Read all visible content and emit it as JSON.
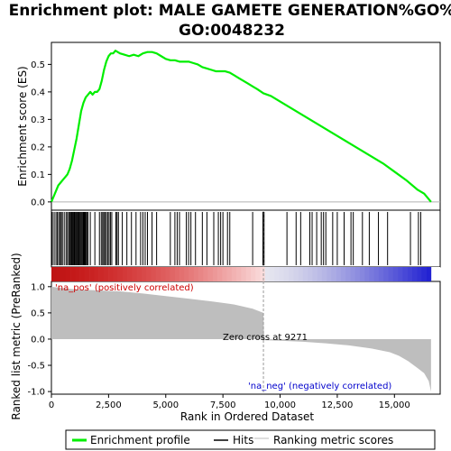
{
  "chart_data": {
    "type": "line",
    "title_line1": "Enrichment plot: MALE GAMETE GENERATION%GO%",
    "title_line2": "GO:0048232",
    "xlabel": "Rank in Ordered Dataset",
    "ylabel_top": "Enrichment score (ES)",
    "ylabel_bottom": "Ranked list metric (PreRanked)",
    "xlim": [
      0,
      17000
    ],
    "x_ticks": [
      0,
      2500,
      5000,
      7500,
      10000,
      12500,
      15000
    ],
    "x_tick_labels": [
      "0",
      "2,500",
      "5,000",
      "7,500",
      "10,000",
      "12,500",
      "15,000"
    ],
    "es_ylim": [
      -0.03,
      0.58
    ],
    "es_ticks": [
      0.0,
      0.1,
      0.2,
      0.3,
      0.4,
      0.5
    ],
    "es_tick_labels": [
      "0.0",
      "0.1",
      "0.2",
      "0.3",
      "0.4",
      "0.5"
    ],
    "metric_ylim": [
      -1.05,
      1.1
    ],
    "metric_ticks": [
      1.0,
      0.5,
      0.0,
      -0.5,
      -1.0
    ],
    "metric_tick_labels": [
      "1.0",
      "0.5",
      "0.0",
      "-0.5",
      "-1.0"
    ],
    "n_genes": 16600,
    "zero_cross": 9271,
    "annotations": {
      "pos": "'na_pos' (positively correlated)",
      "neg": "'na_neg' (negatively correlated)",
      "zero": "Zero cross at 9271"
    },
    "series": [
      {
        "name": "Enrichment profile",
        "color": "#00ee00",
        "x": [
          0,
          100,
          200,
          300,
          400,
          500,
          600,
          700,
          800,
          900,
          1000,
          1100,
          1200,
          1300,
          1400,
          1500,
          1600,
          1700,
          1800,
          1900,
          2000,
          2100,
          2200,
          2300,
          2400,
          2500,
          2600,
          2700,
          2800,
          2900,
          3000,
          3200,
          3400,
          3600,
          3800,
          4000,
          4200,
          4400,
          4600,
          4800,
          5000,
          5200,
          5400,
          5600,
          5800,
          6000,
          6200,
          6400,
          6600,
          6800,
          7000,
          7200,
          7400,
          7600,
          7800,
          8000,
          8200,
          8400,
          8600,
          8800,
          9000,
          9271,
          9600,
          10000,
          10500,
          11000,
          11500,
          12000,
          12500,
          13000,
          13500,
          14000,
          14500,
          15000,
          15500,
          16000,
          16300,
          16600
        ],
        "y": [
          0.0,
          0.02,
          0.04,
          0.06,
          0.07,
          0.08,
          0.09,
          0.1,
          0.12,
          0.15,
          0.19,
          0.23,
          0.28,
          0.33,
          0.36,
          0.38,
          0.39,
          0.4,
          0.39,
          0.4,
          0.4,
          0.41,
          0.44,
          0.48,
          0.51,
          0.53,
          0.54,
          0.54,
          0.55,
          0.545,
          0.54,
          0.535,
          0.53,
          0.535,
          0.53,
          0.54,
          0.545,
          0.545,
          0.54,
          0.53,
          0.52,
          0.515,
          0.515,
          0.51,
          0.51,
          0.51,
          0.505,
          0.5,
          0.49,
          0.485,
          0.48,
          0.475,
          0.475,
          0.475,
          0.47,
          0.46,
          0.45,
          0.44,
          0.43,
          0.42,
          0.41,
          0.395,
          0.385,
          0.365,
          0.34,
          0.315,
          0.29,
          0.265,
          0.24,
          0.215,
          0.19,
          0.165,
          0.14,
          0.11,
          0.08,
          0.045,
          0.03,
          0.0
        ]
      },
      {
        "name": "Hits",
        "color": "#000000"
      },
      {
        "name": "Ranking metric scores",
        "color": "#bebebe",
        "x": [
          0,
          500,
          1000,
          2000,
          3000,
          4000,
          5000,
          6000,
          7000,
          8000,
          8800,
          9271,
          9300,
          10000,
          11000,
          12000,
          13000,
          14000,
          14800,
          15200,
          15600,
          16000,
          16300,
          16500,
          16600
        ],
        "y": [
          1.0,
          0.97,
          0.95,
          0.93,
          0.91,
          0.87,
          0.82,
          0.77,
          0.72,
          0.66,
          0.58,
          0.5,
          -0.02,
          -0.03,
          -0.05,
          -0.08,
          -0.12,
          -0.18,
          -0.25,
          -0.32,
          -0.42,
          -0.55,
          -0.65,
          -0.8,
          -1.0
        ]
      }
    ],
    "hits": [
      40,
      120,
      200,
      260,
      320,
      380,
      430,
      480,
      560,
      640,
      700,
      760,
      800,
      840,
      880,
      910,
      950,
      990,
      1020,
      1060,
      1100,
      1140,
      1180,
      1210,
      1250,
      1290,
      1330,
      1370,
      1400,
      1440,
      1480,
      1510,
      1550,
      1600,
      1700,
      1900,
      2100,
      2180,
      2240,
      2290,
      2340,
      2400,
      2460,
      2520,
      2580,
      2640,
      2820,
      2870,
      2930,
      3100,
      3300,
      3500,
      3700,
      3900,
      4000,
      4100,
      4200,
      4400,
      4600,
      5200,
      5400,
      5500,
      5600,
      5900,
      6000,
      6100,
      6300,
      6600,
      6800,
      7100,
      7300,
      7400,
      7500,
      7700,
      7800,
      8800,
      9250,
      9300,
      10300,
      10700,
      10900,
      11300,
      11400,
      11600,
      11800,
      11900,
      12000,
      12300,
      12500,
      12800,
      13100,
      13200,
      13600,
      13900,
      14300,
      14700,
      15700,
      16050,
      16150
    ]
  },
  "legend": {
    "items": [
      {
        "label": "Enrichment profile",
        "color": "#00ee00"
      },
      {
        "label": "Hits",
        "color": "#000000"
      },
      {
        "label": "Ranking metric scores",
        "color": "#bebebe"
      }
    ]
  }
}
